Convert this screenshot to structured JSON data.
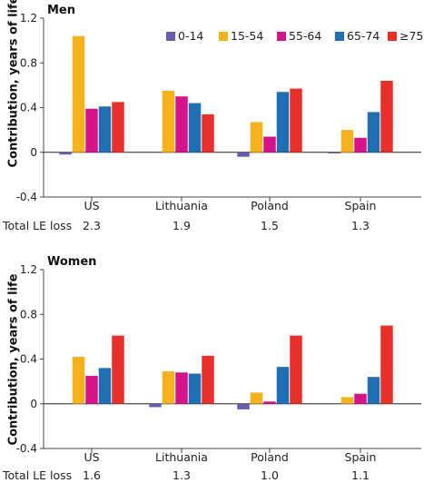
{
  "chart_data": [
    {
      "type": "bar",
      "title": "Men",
      "ylabel": "Contribution, years of life",
      "ylim": [
        -0.4,
        1.2
      ],
      "yticks": [
        "-0.4",
        "0",
        "0.4",
        "0.8",
        "1.2"
      ],
      "categories": [
        "US",
        "Lithuania",
        "Poland",
        "Spain"
      ],
      "series": [
        {
          "name": "0-14",
          "values": [
            -0.02,
            0.0,
            -0.04,
            -0.01
          ]
        },
        {
          "name": "15-54",
          "values": [
            1.04,
            0.55,
            0.27,
            0.2
          ]
        },
        {
          "name": "55-64",
          "values": [
            0.39,
            0.5,
            0.14,
            0.13
          ]
        },
        {
          "name": "65-74",
          "values": [
            0.41,
            0.44,
            0.54,
            0.36
          ]
        },
        {
          "name": "≥75",
          "values": [
            0.45,
            0.34,
            0.57,
            0.64
          ]
        }
      ],
      "total_label": "Total LE loss",
      "totals": [
        "2.3",
        "1.9",
        "1.5",
        "1.3"
      ],
      "legend": "top-right",
      "grid": false
    },
    {
      "type": "bar",
      "title": "Women",
      "ylabel": "Contribution, years of life",
      "ylim": [
        -0.4,
        1.2
      ],
      "yticks": [
        "-0.4",
        "0",
        "0.4",
        "0.8",
        "1.2"
      ],
      "categories": [
        "US",
        "Lithuania",
        "Poland",
        "Spain"
      ],
      "series": [
        {
          "name": "0-14",
          "values": [
            0.0,
            -0.03,
            -0.05,
            0.0
          ]
        },
        {
          "name": "15-54",
          "values": [
            0.42,
            0.29,
            0.1,
            0.06
          ]
        },
        {
          "name": "55-64",
          "values": [
            0.25,
            0.28,
            0.02,
            0.09
          ]
        },
        {
          "name": "65-74",
          "values": [
            0.32,
            0.27,
            0.33,
            0.24
          ]
        },
        {
          "name": "≥75",
          "values": [
            0.61,
            0.43,
            0.61,
            0.7
          ]
        }
      ],
      "total_label": "Total LE loss",
      "totals": [
        "1.6",
        "1.3",
        "1.0",
        "1.1"
      ],
      "grid": false
    }
  ],
  "colors": {
    "0-14": "#6a5bb0",
    "15-54": "#f6b21c",
    "55-64": "#d5148c",
    "65-74": "#1f6fb4",
    "≥75": "#e8302a",
    "axis": "#444444",
    "zero_line": "#222222"
  }
}
